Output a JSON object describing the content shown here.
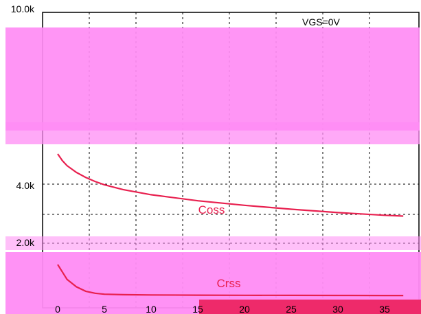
{
  "chart_data": {
    "type": "line",
    "annotation": "VGS=0V",
    "y_tick_labels": [
      "10.0k",
      "4.0k",
      "2.0k"
    ],
    "x_tick_labels": [
      "0",
      "5",
      "10",
      "15",
      "20",
      "25",
      "30",
      "35"
    ],
    "xlim": [
      0,
      37
    ],
    "grid": true,
    "colors": {
      "curve": "#e8204f",
      "overlay": "#ff8cf4",
      "grid": "#000000"
    },
    "series": [
      {
        "name": "Coss",
        "x": [
          0,
          0.5,
          1,
          2,
          3,
          4,
          5,
          7,
          10,
          15,
          20,
          25,
          30,
          35,
          37
        ],
        "y": [
          4900,
          4700,
          4550,
          4350,
          4200,
          4080,
          3980,
          3820,
          3650,
          3450,
          3300,
          3170,
          3060,
          2970,
          2940
        ]
      },
      {
        "name": "Crss",
        "x": [
          0,
          0.5,
          1,
          2,
          3,
          4,
          5,
          7,
          10,
          15,
          20,
          25,
          30,
          35,
          37
        ],
        "y": [
          1600,
          1450,
          1300,
          1150,
          1060,
          1020,
          1000,
          990,
          985,
          980,
          978,
          976,
          975,
          974,
          974
        ]
      }
    ]
  }
}
